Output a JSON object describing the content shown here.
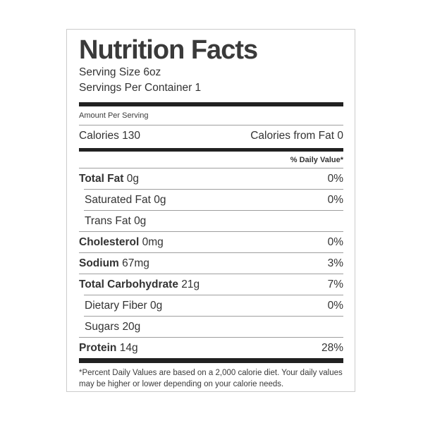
{
  "label": {
    "title": "Nutrition Facts",
    "serving_size": "Serving Size 6oz",
    "servings_per_container": "Servings Per Container 1",
    "amount_per_serving": "Amount Per Serving",
    "calories_label": "Calories",
    "calories_value": "130",
    "calories_from_fat_label": "Calories from Fat",
    "calories_from_fat_value": "0",
    "daily_value_header": "% Daily Value*",
    "rows": [
      {
        "name": "Total Fat",
        "amount": "0g",
        "dv": "0%"
      },
      {
        "name": "Saturated Fat",
        "amount": "0g",
        "dv": "0%"
      },
      {
        "name": "Trans Fat",
        "amount": "0g",
        "dv": ""
      },
      {
        "name": "Cholesterol",
        "amount": "0mg",
        "dv": "0%"
      },
      {
        "name": "Sodium",
        "amount": "67mg",
        "dv": "3%"
      },
      {
        "name": "Total Carbohydrate",
        "amount": "21g",
        "dv": "7%"
      },
      {
        "name": "Dietary Fiber",
        "amount": "0g",
        "dv": "0%"
      },
      {
        "name": "Sugars",
        "amount": "20g",
        "dv": ""
      },
      {
        "name": "Protein",
        "amount": "14g",
        "dv": "28%"
      }
    ],
    "footnote": "*Percent Daily Values are based on a 2,000 calorie diet. Your daily values may be higher or lower depending on your calorie needs."
  },
  "colors": {
    "text": "#333333",
    "thick_rule": "#212121",
    "thin_rule": "#9e9e9e",
    "card_border": "#cccccc",
    "background": "#ffffff"
  }
}
